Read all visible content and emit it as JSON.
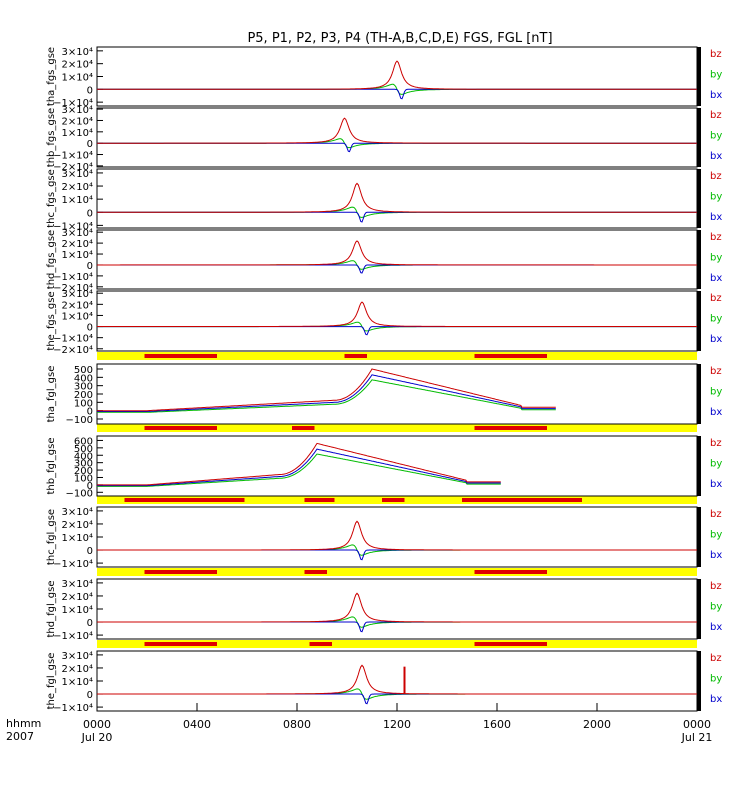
{
  "title": "P5, P1, P2, P3, P4 (TH-A,B,C,D,E) FGS, FGL [nT]",
  "colors": {
    "bz": "#cc0000",
    "by": "#00bb00",
    "bx": "#0000cc",
    "bar_bg": "#ffff00",
    "bar_fg": "#e00000",
    "axis": "#000000"
  },
  "legend": [
    "bz",
    "by",
    "bx"
  ],
  "xaxis": {
    "left_label_1": "hhmm",
    "left_label_2": "2007",
    "ticks": [
      "0000",
      "0400",
      "0800",
      "1200",
      "1600",
      "2000",
      "0000"
    ],
    "tick_hours": [
      0,
      4,
      8,
      12,
      16,
      20,
      24
    ],
    "date_start": "Jul 20",
    "date_end": "Jul 21"
  },
  "chart_data": [
    {
      "type": "line",
      "ylabel": "tha_fgs_gse",
      "yticks": [
        "3×10⁴",
        "2×10⁴",
        "1×10⁴",
        "0",
        "−1×10⁴"
      ],
      "ytick_values": [
        30000,
        20000,
        10000,
        0,
        -10000
      ],
      "ylim": [
        -13000,
        33000
      ],
      "peak_hour": 12.0,
      "peak_nT": 22000,
      "series": [
        "bz",
        "by",
        "bx"
      ]
    },
    {
      "type": "line",
      "ylabel": "thb_fgs_gse",
      "yticks": [
        "3×10⁴",
        "2×10⁴",
        "1×10⁴",
        "0",
        "−1×10⁴",
        "−2×10⁴"
      ],
      "ytick_values": [
        30000,
        20000,
        10000,
        0,
        -10000,
        -20000
      ],
      "ylim": [
        -21000,
        31000
      ],
      "peak_hour": 9.9,
      "peak_nT": 22000,
      "series": [
        "bz",
        "by",
        "bx"
      ]
    },
    {
      "type": "line",
      "ylabel": "thc_fgs_gse",
      "yticks": [
        "3×10⁴",
        "2×10⁴",
        "1×10⁴",
        "0",
        "−1×10⁴"
      ],
      "ytick_values": [
        30000,
        20000,
        10000,
        0,
        -10000
      ],
      "ylim": [
        -12000,
        33000
      ],
      "peak_hour": 10.4,
      "peak_nT": 22000,
      "series": [
        "bz",
        "by",
        "bx"
      ]
    },
    {
      "type": "line",
      "ylabel": "thd_fgs_gse",
      "yticks": [
        "3×10⁴",
        "2×10⁴",
        "1×10⁴",
        "0",
        "−1×10⁴",
        "−2×10⁴"
      ],
      "ytick_values": [
        30000,
        20000,
        10000,
        0,
        -10000,
        -20000
      ],
      "ylim": [
        -22000,
        32000
      ],
      "peak_hour": 10.4,
      "peak_nT": 22000,
      "series": [
        "bz",
        "by",
        "bx"
      ]
    },
    {
      "type": "line",
      "ylabel": "the_fgs_gse",
      "yticks": [
        "3×10⁴",
        "2×10⁴",
        "1×10⁴",
        "0",
        "−1×10⁴",
        "−2×10⁴"
      ],
      "ytick_values": [
        30000,
        20000,
        10000,
        0,
        -10000,
        -20000
      ],
      "ylim": [
        -22000,
        32000
      ],
      "peak_hour": 10.6,
      "peak_nT": 22000,
      "series": [
        "bz",
        "by",
        "bx"
      ]
    },
    {
      "type": "line",
      "ylabel": "tha_fgl_gse",
      "yticks": [
        "500",
        "400",
        "300",
        "200",
        "100",
        "0",
        "−100"
      ],
      "ytick_values": [
        500,
        400,
        300,
        200,
        100,
        0,
        -100
      ],
      "ylim": [
        -160,
        560
      ],
      "peak_hour": 11.0,
      "peak_nT": 500,
      "series": [
        "bz",
        "by",
        "bx"
      ],
      "bar_segments": [
        [
          1.9,
          4.8
        ],
        [
          9.9,
          10.8
        ],
        [
          15.1,
          18.0
        ]
      ]
    },
    {
      "type": "line",
      "ylabel": "thb_fgl_gse",
      "yticks": [
        "600",
        "500",
        "400",
        "300",
        "200",
        "100",
        "0",
        "−100"
      ],
      "ytick_values": [
        600,
        500,
        400,
        300,
        200,
        100,
        0,
        -100
      ],
      "ylim": [
        -150,
        660
      ],
      "peak_hour": 8.8,
      "peak_nT": 560,
      "series": [
        "bz",
        "by",
        "bx"
      ],
      "bar_segments": [
        [
          1.9,
          4.8
        ],
        [
          7.8,
          8.7
        ],
        [
          15.1,
          18.0
        ]
      ]
    },
    {
      "type": "line",
      "ylabel": "thc_fgl_gse",
      "yticks": [
        "3×10⁴",
        "2×10⁴",
        "1×10⁴",
        "0",
        "−1×10⁴"
      ],
      "ytick_values": [
        30000,
        20000,
        10000,
        0,
        -10000
      ],
      "ylim": [
        -13000,
        33000
      ],
      "peak_hour": 10.4,
      "peak_nT": 22000,
      "series": [
        "bz",
        "by",
        "bx"
      ],
      "bar_segments": [
        [
          1.1,
          5.9
        ],
        [
          8.3,
          9.5
        ],
        [
          11.4,
          12.3
        ],
        [
          14.6,
          19.4
        ]
      ]
    },
    {
      "type": "line",
      "ylabel": "thd_fgl_gse",
      "yticks": [
        "3×10⁴",
        "2×10⁴",
        "1×10⁴",
        "0",
        "−1×10⁴"
      ],
      "ytick_values": [
        30000,
        20000,
        10000,
        0,
        -10000
      ],
      "ylim": [
        -13000,
        33000
      ],
      "peak_hour": 10.4,
      "peak_nT": 22000,
      "series": [
        "bz",
        "by",
        "bx"
      ],
      "bar_segments": [
        [
          1.9,
          4.8
        ],
        [
          8.3,
          9.2
        ],
        [
          15.1,
          18.0
        ]
      ]
    },
    {
      "type": "line",
      "ylabel": "the_fgl_gse",
      "yticks": [
        "3×10⁴",
        "2×10⁴",
        "1×10⁴",
        "0",
        "−1×10⁴"
      ],
      "ytick_values": [
        30000,
        20000,
        10000,
        0,
        -10000
      ],
      "ylim": [
        -13000,
        33000
      ],
      "peak_hour": 10.6,
      "peak_nT": 22000,
      "series": [
        "bz",
        "by",
        "bx"
      ],
      "bar_segments": [
        [
          1.9,
          4.8
        ],
        [
          8.5,
          9.4
        ],
        [
          15.1,
          18.0
        ]
      ],
      "spike_hour": 12.3,
      "spike_nT": 21000
    }
  ]
}
